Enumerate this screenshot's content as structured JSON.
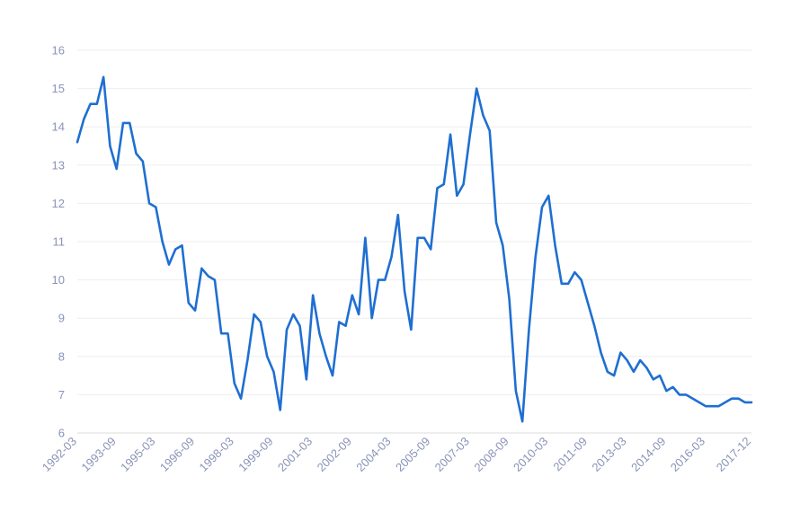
{
  "chart_data": {
    "type": "line",
    "title": "",
    "xlabel": "",
    "ylabel": "",
    "ylim": [
      6,
      16
    ],
    "yticks": [
      6,
      7,
      8,
      9,
      10,
      11,
      12,
      13,
      14,
      15,
      16
    ],
    "grid": true,
    "legend": "none",
    "line_color": "#1f6fd1",
    "x_tick_labels": [
      "1992-03",
      "1993-09",
      "1995-03",
      "1996-09",
      "1998-03",
      "1999-09",
      "2001-03",
      "2002-09",
      "2004-03",
      "2005-09",
      "2007-03",
      "2008-09",
      "2010-03",
      "2011-09",
      "2013-03",
      "2014-09",
      "2016-03",
      "2017-12"
    ],
    "x": [
      "1992-03",
      "1992-06",
      "1992-09",
      "1992-12",
      "1993-03",
      "1993-06",
      "1993-09",
      "1993-12",
      "1994-03",
      "1994-06",
      "1994-09",
      "1994-12",
      "1995-03",
      "1995-06",
      "1995-09",
      "1995-12",
      "1996-03",
      "1996-06",
      "1996-09",
      "1996-12",
      "1997-03",
      "1997-06",
      "1997-09",
      "1997-12",
      "1998-03",
      "1998-06",
      "1998-09",
      "1998-12",
      "1999-03",
      "1999-06",
      "1999-09",
      "1999-12",
      "2000-03",
      "2000-06",
      "2000-09",
      "2000-12",
      "2001-03",
      "2001-06",
      "2001-09",
      "2001-12",
      "2002-03",
      "2002-06",
      "2002-09",
      "2002-12",
      "2003-03",
      "2003-06",
      "2003-09",
      "2003-12",
      "2004-03",
      "2004-06",
      "2004-09",
      "2004-12",
      "2005-03",
      "2005-06",
      "2005-09",
      "2005-12",
      "2006-03",
      "2006-06",
      "2006-09",
      "2006-12",
      "2007-03",
      "2007-06",
      "2007-09",
      "2007-12",
      "2008-03",
      "2008-06",
      "2008-09",
      "2008-12",
      "2009-03",
      "2009-06",
      "2009-09",
      "2009-12",
      "2010-03",
      "2010-06",
      "2010-09",
      "2010-12",
      "2011-03",
      "2011-06",
      "2011-09",
      "2011-12",
      "2012-03",
      "2012-06",
      "2012-09",
      "2012-12",
      "2013-03",
      "2013-06",
      "2013-09",
      "2013-12",
      "2014-03",
      "2014-06",
      "2014-09",
      "2014-12",
      "2015-03",
      "2015-06",
      "2015-09",
      "2015-12",
      "2016-03",
      "2016-06",
      "2016-09",
      "2016-12",
      "2017-03",
      "2017-06",
      "2017-09",
      "2017-12"
    ],
    "series": [
      {
        "values": [
          13.6,
          14.2,
          14.6,
          14.6,
          15.3,
          13.5,
          12.9,
          14.1,
          14.1,
          13.3,
          13.1,
          12.0,
          11.9,
          11.0,
          10.4,
          10.8,
          10.9,
          9.4,
          9.2,
          10.3,
          10.1,
          10.0,
          8.6,
          8.6,
          7.3,
          6.9,
          7.9,
          9.1,
          8.9,
          8.0,
          7.6,
          6.6,
          8.7,
          9.1,
          8.8,
          7.4,
          9.6,
          8.6,
          8.0,
          7.5,
          8.9,
          8.8,
          9.6,
          9.1,
          11.1,
          9.0,
          10.0,
          10.0,
          10.6,
          11.7,
          9.7,
          8.7,
          11.1,
          11.1,
          10.8,
          12.4,
          12.5,
          13.8,
          12.2,
          12.5,
          13.8,
          15.0,
          14.3,
          13.9,
          11.5,
          10.9,
          9.5,
          7.1,
          6.3,
          8.7,
          10.6,
          11.9,
          12.2,
          10.9,
          9.9,
          9.9,
          10.2,
          10.0,
          9.4,
          8.8,
          8.1,
          7.6,
          7.5,
          8.1,
          7.9,
          7.6,
          7.9,
          7.7,
          7.4,
          7.5,
          7.1,
          7.2,
          7.0,
          7.0,
          6.9,
          6.8,
          6.7,
          6.7,
          6.7,
          6.8,
          6.9,
          6.9,
          6.8,
          6.8
        ]
      }
    ]
  }
}
